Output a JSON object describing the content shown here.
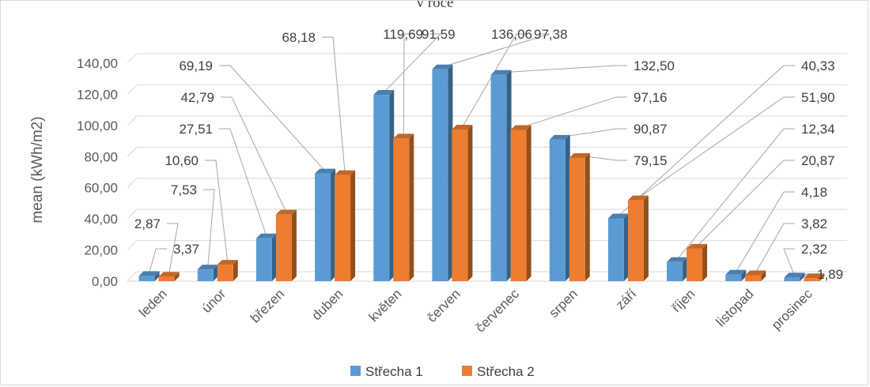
{
  "chart_data": {
    "type": "bar",
    "title": "v roce",
    "ylabel": "mean (kWh/m2)",
    "xlabel": "",
    "ylim": [
      0,
      140
    ],
    "yticks": [
      "0,00",
      "20,00",
      "40,00",
      "60,00",
      "80,00",
      "100,00",
      "120,00",
      "140,00"
    ],
    "categories": [
      "leden",
      "únor",
      "březen",
      "duben",
      "květen",
      "červen",
      "červenec",
      "srpen",
      "září",
      "říjen",
      "listopad",
      "prosinec"
    ],
    "series": [
      {
        "name": "Střecha 1",
        "color": "#5b9bd5",
        "values": [
          3.37,
          7.53,
          27.51,
          69.19,
          119.69,
          136.06,
          132.5,
          90.87,
          40.33,
          12.34,
          4.18,
          2.32
        ],
        "labels": [
          "3,37",
          "7,53",
          "27,51",
          "69,19",
          "119,69",
          "136,06",
          "132,50",
          "90,87",
          "40,33",
          "12,34",
          "4,18",
          "2,32"
        ]
      },
      {
        "name": "Střecha 2",
        "color": "#ed7d31",
        "values": [
          2.87,
          10.6,
          42.79,
          68.18,
          91.59,
          97.38,
          97.16,
          79.15,
          51.9,
          20.87,
          3.82,
          1.89
        ],
        "labels": [
          "2,87",
          "10,60",
          "42,79",
          "68,18",
          "91,59",
          "97,38",
          "97,16",
          "79,15",
          "51,90",
          "20,87",
          "3,82",
          "1,89"
        ]
      }
    ],
    "legend_position": "bottom",
    "grid": true,
    "style": "3d-columns"
  }
}
